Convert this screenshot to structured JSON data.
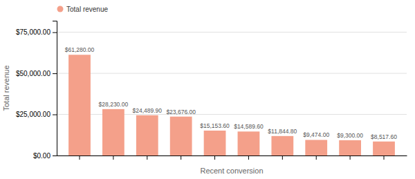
{
  "chart_data": {
    "type": "bar",
    "categories": [
      null,
      null,
      null,
      null,
      null,
      null,
      null,
      null,
      null,
      null
    ],
    "series": [
      {
        "name": "Total revenue",
        "color": "#F4A08A",
        "values": [
          61280.0,
          28230.0,
          24489.9,
          23676.0,
          15153.6,
          14589.6,
          11844.8,
          9474.0,
          9300.0,
          8517.6
        ],
        "value_labels": [
          "$61,280.00",
          "$28,230.00",
          "$24,489.90",
          "$23,676.00",
          "$15,153.60",
          "$14,589.60",
          "$11,844.80",
          "$9,474.00",
          "$9,300.00",
          "$8,517.60"
        ]
      }
    ],
    "xlabel": "Recent conversion",
    "ylabel": "Total revenue",
    "ylim": [
      0,
      82000
    ],
    "yticks": [
      {
        "value": 0,
        "label": "$0.00"
      },
      {
        "value": 25000,
        "label": "$25,000.00"
      },
      {
        "value": 50000,
        "label": "$50,000.00"
      },
      {
        "value": 75000,
        "label": "$75,000.00"
      }
    ],
    "grid": true,
    "legend": "top-left",
    "data_labels": true
  }
}
